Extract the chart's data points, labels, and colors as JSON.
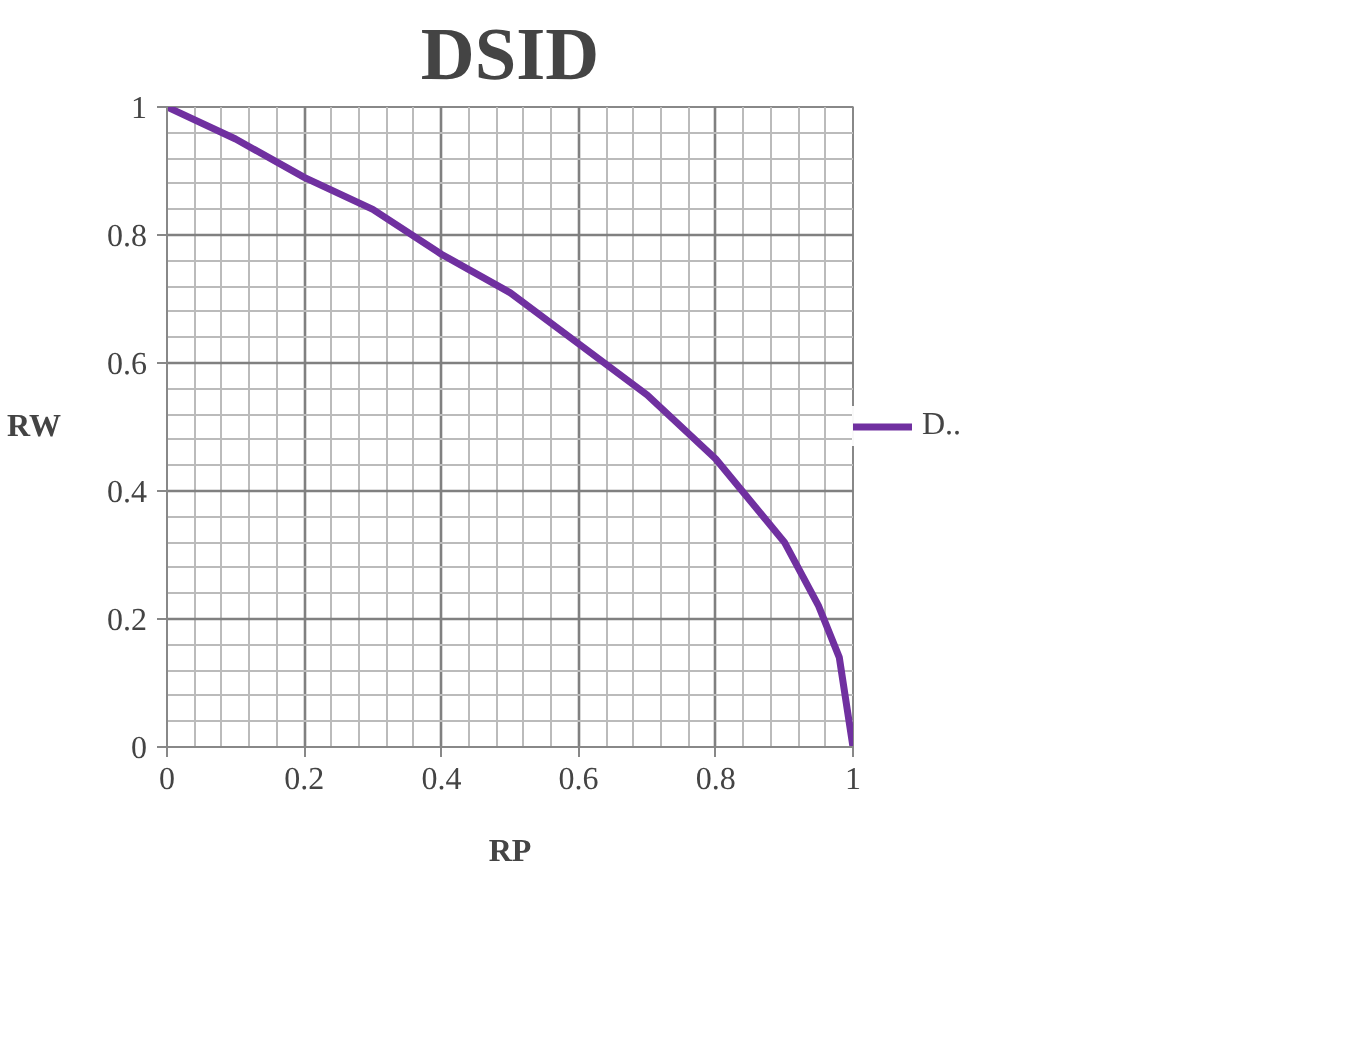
{
  "chart_data": {
    "type": "line",
    "title": "DSID",
    "xlabel": "RP",
    "ylabel": "RW",
    "x": [
      0,
      0.1,
      0.2,
      0.3,
      0.4,
      0.5,
      0.6,
      0.7,
      0.8,
      0.9,
      0.95,
      0.98,
      1
    ],
    "series": [
      {
        "name": "D..",
        "color": "#7030a0",
        "values": [
          1,
          0.95,
          0.89,
          0.84,
          0.77,
          0.71,
          0.63,
          0.55,
          0.45,
          0.32,
          0.22,
          0.14,
          0
        ]
      }
    ],
    "xlim": [
      0,
      1
    ],
    "ylim": [
      0,
      1
    ],
    "xticks": [
      0,
      0.2,
      0.4,
      0.6,
      0.8,
      1
    ],
    "yticks": [
      0,
      0.2,
      0.4,
      0.6,
      0.8,
      1
    ],
    "grid": true,
    "legend": "right",
    "marker": "none",
    "line_style": "solid"
  }
}
